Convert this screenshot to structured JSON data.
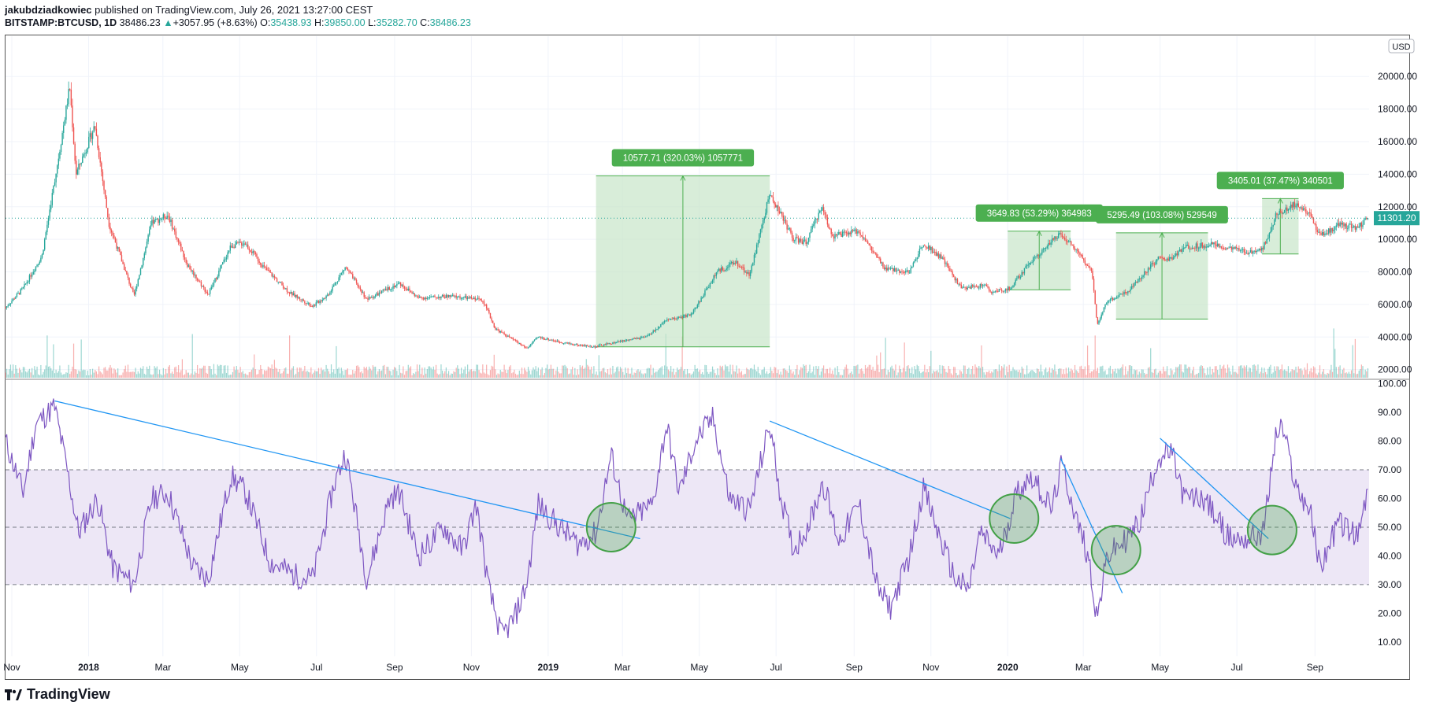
{
  "header": {
    "author": "jakubdziadkowiec",
    "published_text": "published on TradingView.com, July 26, 2021 13:27:00 CEST",
    "symbol": "BITSTAMP:BTCUSD, 1D",
    "last": "38486.23",
    "change": "+3057.95 (+8.63%)",
    "o_label": "O:",
    "o": "35438.93",
    "h_label": "H:",
    "h": "39850.00",
    "l_label": "L:",
    "l": "35282.70",
    "c_label": "C:",
    "c": "38486.23"
  },
  "footer": {
    "brand": "TradingView"
  },
  "currency_badge": "USD",
  "last_price_label": "11301.20",
  "colors": {
    "up": "#26a69a",
    "down": "#ef5350",
    "rsi_line": "#7e57c2",
    "rsi_band": "#ede7f6",
    "box_fill": "#c8e6c9",
    "box_label": "#4caf50",
    "trendline": "#2196f3",
    "circle": "#43a047"
  },
  "chart_data": [
    {
      "type": "candlestick",
      "title": "",
      "y_axis": {
        "ticks": [
          2000,
          4000,
          6000,
          8000,
          10000,
          12000,
          14000,
          16000,
          18000,
          20000
        ],
        "range": [
          1500,
          21800
        ],
        "tick_labels": [
          "2000.00",
          "4000.00",
          "6000.00",
          "8000.00",
          "10000.00",
          "12000.00",
          "14000.00",
          "16000.00",
          "18000.00",
          "20000.00"
        ]
      },
      "x_axis": {
        "tick_labels": [
          "Nov",
          "2018",
          "Mar",
          "May",
          "Jul",
          "Sep",
          "Nov",
          "2019",
          "Mar",
          "May",
          "Jul",
          "Sep",
          "Nov",
          "2020",
          "Mar",
          "May",
          "Jul",
          "Sep"
        ],
        "bold": [
          "2018",
          "2019",
          "2020"
        ]
      },
      "price_path": [
        [
          "2017-10-27",
          5800
        ],
        [
          "2017-11-10",
          7000
        ],
        [
          "2017-11-25",
          9000
        ],
        [
          "2017-12-08",
          15000
        ],
        [
          "2017-12-17",
          19400
        ],
        [
          "2017-12-22",
          14000
        ],
        [
          "2018-01-06",
          17000
        ],
        [
          "2018-01-17",
          11000
        ],
        [
          "2018-02-06",
          6500
        ],
        [
          "2018-02-20",
          11000
        ],
        [
          "2018-03-05",
          11500
        ],
        [
          "2018-03-20",
          8500
        ],
        [
          "2018-04-06",
          6600
        ],
        [
          "2018-04-24",
          9600
        ],
        [
          "2018-05-05",
          9800
        ],
        [
          "2018-05-20",
          8300
        ],
        [
          "2018-06-10",
          6700
        ],
        [
          "2018-06-28",
          5900
        ],
        [
          "2018-07-10",
          6600
        ],
        [
          "2018-07-24",
          8300
        ],
        [
          "2018-08-10",
          6300
        ],
        [
          "2018-08-28",
          7000
        ],
        [
          "2018-09-05",
          7300
        ],
        [
          "2018-09-20",
          6400
        ],
        [
          "2018-10-15",
          6500
        ],
        [
          "2018-11-10",
          6300
        ],
        [
          "2018-11-20",
          4500
        ],
        [
          "2018-12-05",
          3800
        ],
        [
          "2018-12-15",
          3300
        ],
        [
          "2018-12-24",
          4000
        ],
        [
          "2019-01-10",
          3700
        ],
        [
          "2019-01-25",
          3500
        ],
        [
          "2019-02-07",
          3400
        ],
        [
          "2019-02-25",
          3700
        ],
        [
          "2019-03-20",
          4000
        ],
        [
          "2019-04-05",
          5000
        ],
        [
          "2019-04-25",
          5400
        ],
        [
          "2019-05-15",
          8000
        ],
        [
          "2019-05-30",
          8600
        ],
        [
          "2019-06-10",
          7800
        ],
        [
          "2019-06-26",
          12800
        ],
        [
          "2019-07-05",
          11500
        ],
        [
          "2019-07-15",
          10000
        ],
        [
          "2019-07-25",
          9800
        ],
        [
          "2019-08-06",
          12000
        ],
        [
          "2019-08-15",
          10200
        ],
        [
          "2019-09-05",
          10500
        ],
        [
          "2019-09-25",
          8200
        ],
        [
          "2019-10-15",
          8000
        ],
        [
          "2019-10-26",
          9800
        ],
        [
          "2019-11-10",
          8800
        ],
        [
          "2019-11-25",
          7000
        ],
        [
          "2019-12-15",
          7200
        ],
        [
          "2019-12-18",
          6700
        ],
        [
          "2020-01-03",
          7000
        ],
        [
          "2020-01-20",
          8700
        ],
        [
          "2020-02-12",
          10400
        ],
        [
          "2020-02-25",
          9300
        ],
        [
          "2020-03-08",
          8000
        ],
        [
          "2020-03-12",
          4800
        ],
        [
          "2020-03-20",
          6200
        ],
        [
          "2020-04-05",
          6800
        ],
        [
          "2020-04-29",
          8800
        ],
        [
          "2020-05-10",
          8800
        ],
        [
          "2020-05-20",
          9500
        ],
        [
          "2020-06-10",
          9700
        ],
        [
          "2020-07-10",
          9200
        ],
        [
          "2020-07-22",
          9500
        ],
        [
          "2020-08-01",
          11500
        ],
        [
          "2020-08-17",
          12200
        ],
        [
          "2020-08-28",
          11500
        ],
        [
          "2020-09-05",
          10200
        ],
        [
          "2020-09-20",
          10900
        ],
        [
          "2020-10-05",
          10700
        ],
        [
          "2020-10-13",
          11300
        ]
      ],
      "annotations": [
        {
          "type": "long_position_box",
          "start": "2019-02-08",
          "end": "2019-06-26",
          "low": 3400,
          "high": 13900,
          "label": "10577.71 (320.03%) 1057771"
        },
        {
          "type": "long_position_box",
          "start": "2020-01-01",
          "end": "2020-02-20",
          "low": 6900,
          "high": 10500,
          "label": "3649.83 (53.29%) 364983"
        },
        {
          "type": "long_position_box",
          "start": "2020-03-27",
          "end": "2020-06-08",
          "low": 5100,
          "high": 10400,
          "label": "5295.49 (103.08%) 529549"
        },
        {
          "type": "long_position_box",
          "start": "2020-07-21",
          "end": "2020-08-19",
          "low": 9100,
          "high": 12500,
          "label": "3405.01 (37.47%) 340501"
        }
      ],
      "last_price": 11301.2
    },
    {
      "type": "line",
      "title": "",
      "y_axis": {
        "ticks": [
          10,
          20,
          30,
          40,
          50,
          60,
          70,
          80,
          90,
          100
        ],
        "range": [
          5,
          101
        ],
        "tick_labels": [
          "10.00",
          "20.00",
          "30.00",
          "40.00",
          "50.00",
          "60.00",
          "70.00",
          "80.00",
          "90.00",
          "100.00"
        ]
      },
      "band": [
        30,
        70
      ],
      "midline": 50,
      "rsi_path": [
        [
          "2017-10-27",
          80
        ],
        [
          "2017-11-10",
          62
        ],
        [
          "2017-11-20",
          86
        ],
        [
          "2017-12-05",
          92
        ],
        [
          "2017-12-15",
          70
        ],
        [
          "2017-12-24",
          48
        ],
        [
          "2018-01-08",
          60
        ],
        [
          "2018-01-20",
          36
        ],
        [
          "2018-02-06",
          30
        ],
        [
          "2018-02-20",
          60
        ],
        [
          "2018-03-05",
          62
        ],
        [
          "2018-03-25",
          36
        ],
        [
          "2018-04-06",
          32
        ],
        [
          "2018-04-24",
          68
        ],
        [
          "2018-05-06",
          62
        ],
        [
          "2018-05-25",
          38
        ],
        [
          "2018-06-15",
          33
        ],
        [
          "2018-06-28",
          32
        ],
        [
          "2018-07-15",
          65
        ],
        [
          "2018-07-24",
          76
        ],
        [
          "2018-08-10",
          32
        ],
        [
          "2018-08-28",
          60
        ],
        [
          "2018-09-05",
          62
        ],
        [
          "2018-09-20",
          40
        ],
        [
          "2018-10-10",
          50
        ],
        [
          "2018-10-25",
          42
        ],
        [
          "2018-11-05",
          58
        ],
        [
          "2018-11-15",
          28
        ],
        [
          "2018-11-25",
          12
        ],
        [
          "2018-12-05",
          18
        ],
        [
          "2018-12-15",
          30
        ],
        [
          "2018-12-24",
          58
        ],
        [
          "2019-01-10",
          50
        ],
        [
          "2019-01-25",
          44
        ],
        [
          "2019-02-08",
          48
        ],
        [
          "2019-02-20",
          75
        ],
        [
          "2019-03-05",
          52
        ],
        [
          "2019-03-25",
          58
        ],
        [
          "2019-04-05",
          86
        ],
        [
          "2019-04-15",
          62
        ],
        [
          "2019-04-28",
          80
        ],
        [
          "2019-05-12",
          88
        ],
        [
          "2019-05-25",
          60
        ],
        [
          "2019-06-10",
          56
        ],
        [
          "2019-06-26",
          86
        ],
        [
          "2019-07-05",
          60
        ],
        [
          "2019-07-15",
          42
        ],
        [
          "2019-07-28",
          52
        ],
        [
          "2019-08-07",
          66
        ],
        [
          "2019-08-20",
          45
        ],
        [
          "2019-09-05",
          58
        ],
        [
          "2019-09-20",
          28
        ],
        [
          "2019-09-30",
          22
        ],
        [
          "2019-10-15",
          40
        ],
        [
          "2019-10-26",
          64
        ],
        [
          "2019-11-05",
          50
        ],
        [
          "2019-11-20",
          32
        ],
        [
          "2019-12-01",
          28
        ],
        [
          "2019-12-10",
          48
        ],
        [
          "2019-12-25",
          40
        ],
        [
          "2020-01-08",
          62
        ],
        [
          "2020-01-20",
          68
        ],
        [
          "2020-02-05",
          56
        ],
        [
          "2020-02-13",
          72
        ],
        [
          "2020-02-25",
          52
        ],
        [
          "2020-03-05",
          40
        ],
        [
          "2020-03-12",
          18
        ],
        [
          "2020-03-20",
          40
        ],
        [
          "2020-04-05",
          46
        ],
        [
          "2020-04-15",
          52
        ],
        [
          "2020-04-29",
          74
        ],
        [
          "2020-05-10",
          76
        ],
        [
          "2020-05-20",
          60
        ],
        [
          "2020-06-05",
          60
        ],
        [
          "2020-06-25",
          46
        ],
        [
          "2020-07-10",
          46
        ],
        [
          "2020-07-22",
          48
        ],
        [
          "2020-08-01",
          82
        ],
        [
          "2020-08-06",
          85
        ],
        [
          "2020-08-17",
          64
        ],
        [
          "2020-08-28",
          56
        ],
        [
          "2020-09-05",
          36
        ],
        [
          "2020-09-20",
          52
        ],
        [
          "2020-10-05",
          46
        ],
        [
          "2020-10-13",
          63
        ]
      ],
      "trendlines": [
        {
          "from": [
            "2017-12-05",
            94
          ],
          "to": [
            "2019-03-15",
            46
          ]
        },
        {
          "from": [
            "2019-06-26",
            87
          ],
          "to": [
            "2020-01-03",
            53
          ]
        },
        {
          "from": [
            "2020-02-12",
            74
          ],
          "to": [
            "2020-04-01",
            27
          ]
        },
        {
          "from": [
            "2020-05-01",
            81
          ],
          "to": [
            "2020-07-26",
            46
          ]
        }
      ],
      "circles": [
        {
          "center": [
            "2019-02-20",
            50
          ]
        },
        {
          "center": [
            "2020-01-06",
            53
          ]
        },
        {
          "center": [
            "2020-03-27",
            42
          ]
        },
        {
          "center": [
            "2020-07-29",
            49
          ]
        }
      ]
    }
  ]
}
